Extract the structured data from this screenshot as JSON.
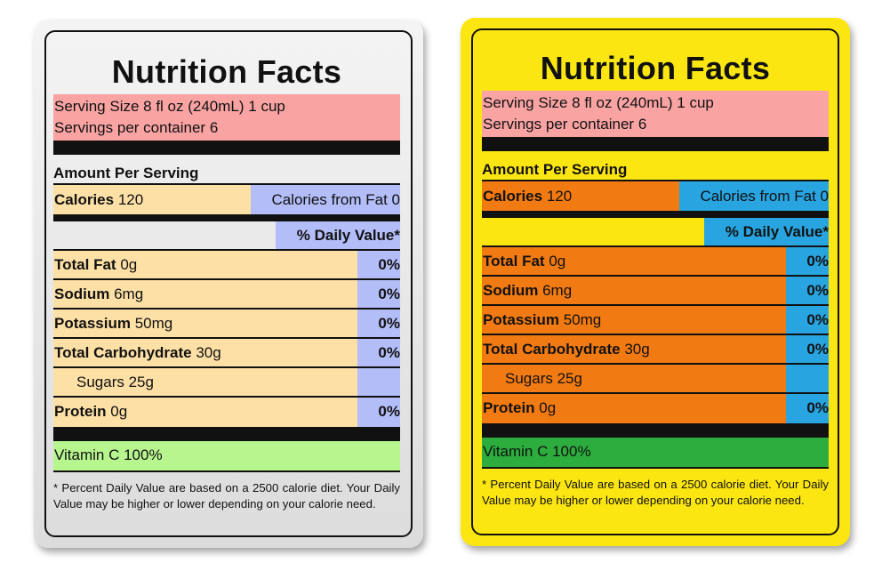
{
  "labels": [
    {
      "title": "Nutrition Facts",
      "serving_size": "Serving Size 8 fl oz (240mL) 1 cup",
      "servings_per_container": "Servings per container 6",
      "amount_per_serving": "Amount Per Serving",
      "calories_label": "Calories",
      "calories_value": "120",
      "calories_from_fat": "Calories from Fat 0",
      "daily_value_header": "% Daily Value*",
      "nutrients": [
        {
          "name": "Total Fat",
          "amount": "0g",
          "dv": "0%"
        },
        {
          "name": "Sodium",
          "amount": "6mg",
          "dv": "0%"
        },
        {
          "name": "Potassium",
          "amount": "50mg",
          "dv": "0%"
        },
        {
          "name": "Total Carbohydrate",
          "amount": "30g",
          "dv": "0%"
        },
        {
          "name": "Sugars 25g",
          "amount": "",
          "dv": ""
        },
        {
          "name": "Protein",
          "amount": "0g",
          "dv": "0%"
        }
      ],
      "vitamin": "Vitamin C 100%",
      "footnote": "* Percent Daily Value are based on a 2500 calorie diet. Your Daily Value may be higher or lower depending on your calorie need.",
      "colors": {
        "card_bg": "#e6e6e6",
        "serving_bg": "#f9a3a3",
        "rows_bg": "#fde0a6",
        "dv_bg": "#b3bdf7",
        "vitamin_bg": "#b7f58f"
      }
    },
    {
      "title": "Nutrition Facts",
      "serving_size": "Serving Size 8 fl oz (240mL) 1 cup",
      "servings_per_container": "Servings per container 6",
      "amount_per_serving": "Amount Per Serving",
      "calories_label": "Calories",
      "calories_value": "120",
      "calories_from_fat": "Calories from Fat 0",
      "daily_value_header": "% Daily Value*",
      "nutrients": [
        {
          "name": "Total Fat",
          "amount": "0g",
          "dv": "0%"
        },
        {
          "name": "Sodium",
          "amount": "6mg",
          "dv": "0%"
        },
        {
          "name": "Potassium",
          "amount": "50mg",
          "dv": "0%"
        },
        {
          "name": "Total Carbohydrate",
          "amount": "30g",
          "dv": "0%"
        },
        {
          "name": "Sugars 25g",
          "amount": "",
          "dv": ""
        },
        {
          "name": "Protein",
          "amount": "0g",
          "dv": "0%"
        }
      ],
      "vitamin": "Vitamin C 100%",
      "footnote": "* Percent Daily Value are based on a 2500 calorie diet. Your Daily Value may be higher or lower depending on your calorie need.",
      "colors": {
        "card_bg": "#fbe612",
        "serving_bg": "#f9a3a3",
        "rows_bg": "#f27a12",
        "dv_bg": "#28a4e0",
        "vitamin_bg": "#2dad3e"
      }
    }
  ]
}
